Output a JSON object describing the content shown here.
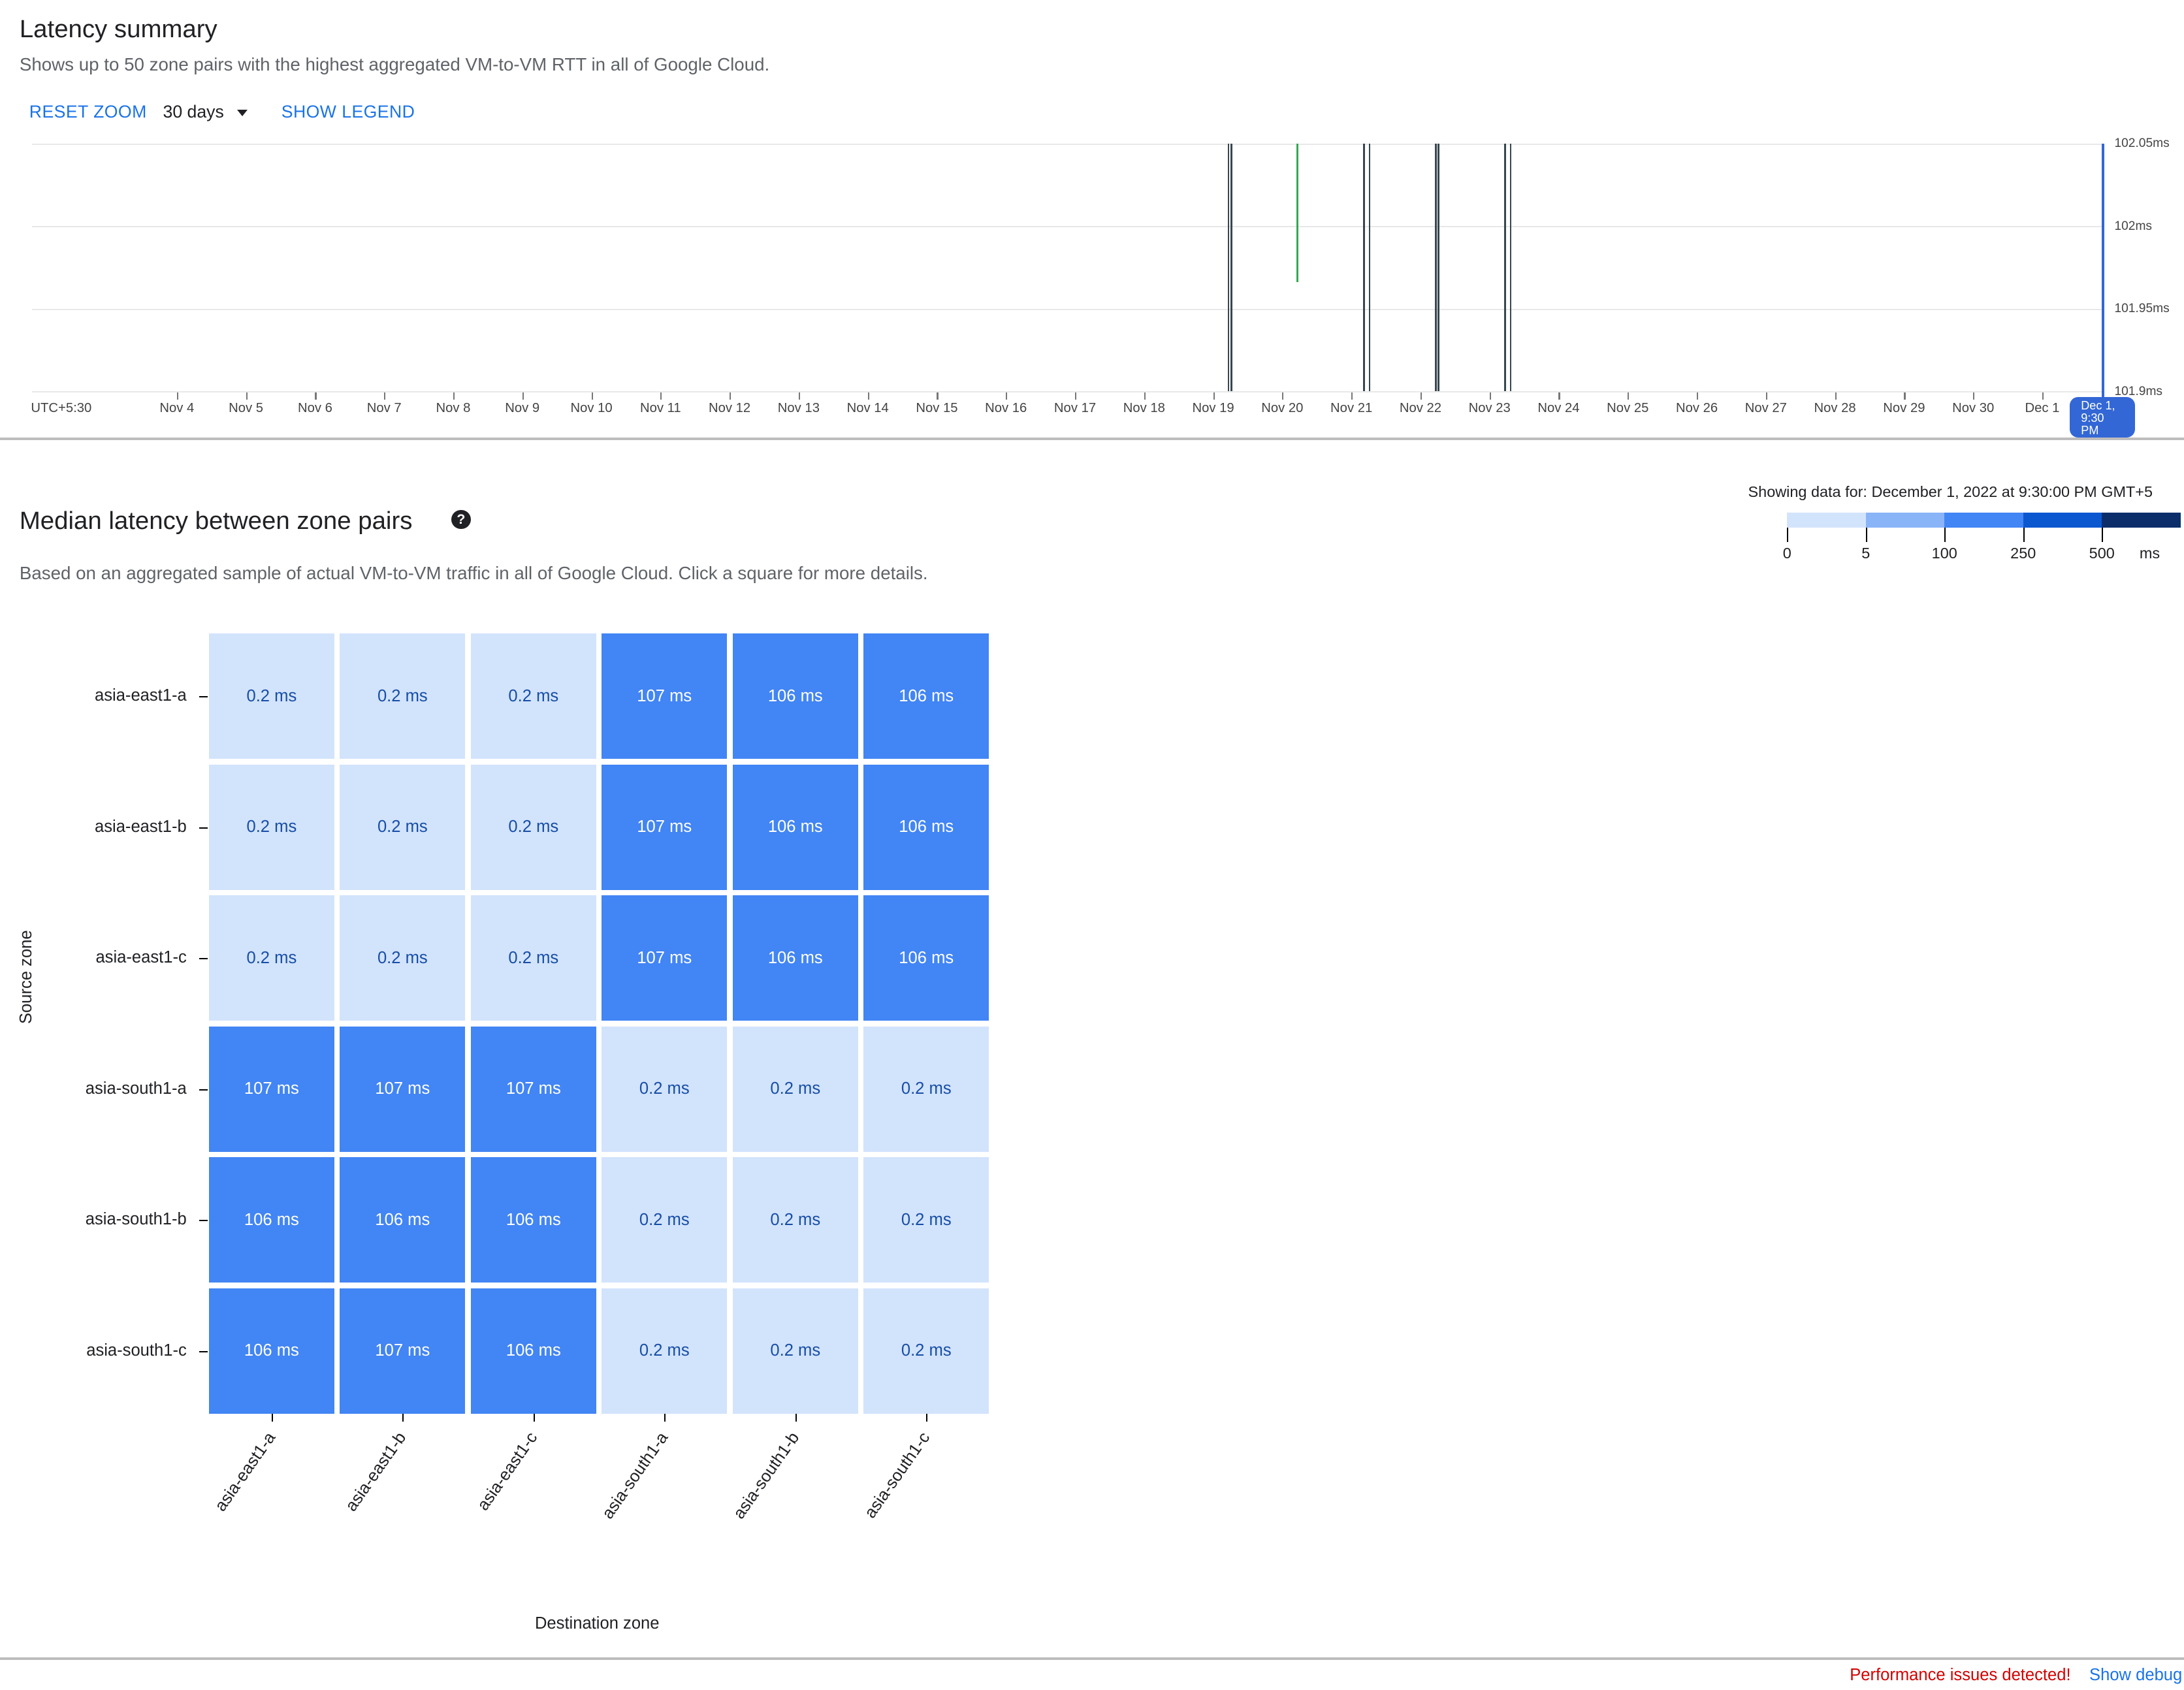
{
  "summary": {
    "title": "Latency summary",
    "subtitle": "Shows up to 50 zone pairs with the highest aggregated VM-to-VM RTT in all of Google Cloud.",
    "reset_zoom": "RESET ZOOM",
    "range": "30 days",
    "show_legend": "SHOW LEGEND"
  },
  "chart_data": [
    {
      "type": "line",
      "x_ticks": [
        "UTC+5:30",
        "Nov 4",
        "Nov 5",
        "Nov 6",
        "Nov 7",
        "Nov 8",
        "Nov 9",
        "Nov 10",
        "Nov 11",
        "Nov 12",
        "Nov 13",
        "Nov 14",
        "Nov 15",
        "Nov 16",
        "Nov 17",
        "Nov 18",
        "Nov 19",
        "Nov 20",
        "Nov 21",
        "Nov 22",
        "Nov 23",
        "Nov 24",
        "Nov 25",
        "Nov 26",
        "Nov 27",
        "Nov 28",
        "Nov 29",
        "Nov 30",
        "Dec 1"
      ],
      "y_ticks": [
        "102.05ms",
        "102ms",
        "101.95ms",
        "101.9ms"
      ],
      "ylim": [
        101.9,
        102.05
      ],
      "grid": true,
      "spikes": [
        {
          "x": "Nov 19 05:00",
          "y_from": 101.9,
          "y_to": 102.05,
          "color": "#37474f"
        },
        {
          "x": "Nov 19 06:00",
          "y_from": 101.9,
          "y_to": 102.05,
          "color": "#37474f"
        },
        {
          "x": "Nov 20 05:00",
          "y_from": 101.966,
          "y_to": 102.05,
          "color": "#34a853"
        },
        {
          "x": "Nov 21 04:00",
          "y_from": 101.9,
          "y_to": 102.05,
          "color": "#37474f"
        },
        {
          "x": "Nov 21 06:00",
          "y_from": 101.9,
          "y_to": 102.05,
          "color": "#37474f"
        },
        {
          "x": "Nov 22 05:00",
          "y_from": 101.9,
          "y_to": 102.05,
          "color": "#37474f"
        },
        {
          "x": "Nov 22 06:00",
          "y_from": 101.9,
          "y_to": 102.05,
          "color": "#37474f"
        },
        {
          "x": "Nov 23 05:00",
          "y_from": 101.9,
          "y_to": 102.05,
          "color": "#37474f"
        },
        {
          "x": "Nov 23 07:00",
          "y_from": 101.9,
          "y_to": 102.05,
          "color": "#37474f"
        }
      ],
      "cursor_label": "Dec 1, 9:30 PM"
    },
    {
      "type": "heatmap",
      "title": "Median latency between zone pairs",
      "ylabel": "Source zone",
      "xlabel": "Destination zone",
      "rows": [
        "asia-east1-a",
        "asia-east1-b",
        "asia-east1-c",
        "asia-south1-a",
        "asia-south1-b",
        "asia-south1-c"
      ],
      "columns": [
        "asia-east1-a",
        "asia-east1-b",
        "asia-east1-c",
        "asia-south1-a",
        "asia-south1-b",
        "asia-south1-c"
      ],
      "values": [
        [
          "0.2 ms",
          "0.2 ms",
          "0.2 ms",
          "107 ms",
          "106 ms",
          "106 ms"
        ],
        [
          "0.2 ms",
          "0.2 ms",
          "0.2 ms",
          "107 ms",
          "106 ms",
          "106 ms"
        ],
        [
          "0.2 ms",
          "0.2 ms",
          "0.2 ms",
          "107 ms",
          "106 ms",
          "106 ms"
        ],
        [
          "107 ms",
          "107 ms",
          "107 ms",
          "0.2 ms",
          "0.2 ms",
          "0.2 ms"
        ],
        [
          "106 ms",
          "106 ms",
          "106 ms",
          "0.2 ms",
          "0.2 ms",
          "0.2 ms"
        ],
        [
          "106 ms",
          "107 ms",
          "106 ms",
          "0.2 ms",
          "0.2 ms",
          "0.2 ms"
        ]
      ]
    }
  ],
  "heatmap_section": {
    "title": "Median latency between zone pairs",
    "help_icon": "help-circle-icon",
    "description": "Based on an aggregated sample of actual VM-to-VM traffic in all of Google Cloud. Click a square for more details.",
    "showing": "Showing data for: December 1, 2022 at 9:30:00 PM GMT+5",
    "scale_labels": [
      "0",
      "5",
      "100",
      "250",
      "500",
      "ms"
    ],
    "scale_colors": [
      "#d2e3fc",
      "#8ab4f8",
      "#4285f4",
      "#0b57d0",
      "#0b2e6b"
    ]
  },
  "footer": {
    "perf_warning": "Performance issues detected!",
    "debug_link": "Show debug p"
  }
}
